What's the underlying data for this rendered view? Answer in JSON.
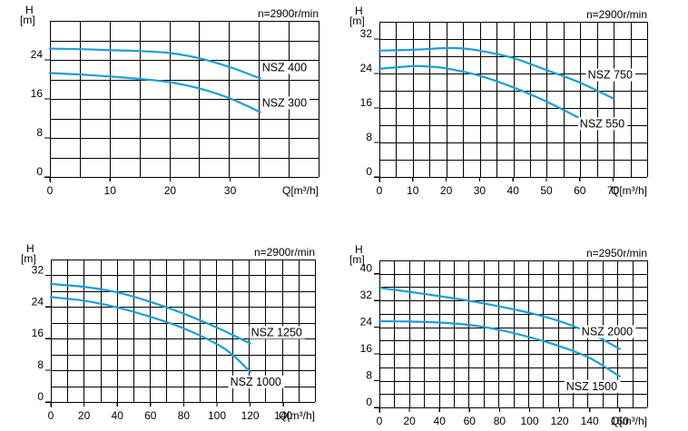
{
  "chart_data": [
    {
      "type": "line",
      "y_unit": "[m]",
      "y_label": "H",
      "x_label": "Q[m³/h]",
      "speed_label": "n=2900r/min",
      "x_ticks": [
        0,
        10,
        20,
        30
      ],
      "y_ticks": [
        0,
        8,
        16,
        24
      ],
      "xlim": [
        0,
        45
      ],
      "ylim": [
        0,
        32
      ],
      "grid": true,
      "series": [
        {
          "name": "NSZ 400",
          "x": [
            0,
            5,
            10,
            15,
            20,
            25,
            30,
            35
          ],
          "y": [
            26.3,
            26.2,
            26.0,
            25.8,
            25.4,
            24.3,
            22.5,
            20.2
          ]
        },
        {
          "name": "NSZ 300",
          "x": [
            0,
            5,
            10,
            15,
            20,
            25,
            30,
            35
          ],
          "y": [
            21.3,
            21.0,
            20.6,
            20.1,
            19.4,
            18.1,
            16.1,
            13.3
          ]
        }
      ]
    },
    {
      "type": "line",
      "y_unit": "[m]",
      "y_label": "H",
      "x_label": "Q[m³/h]",
      "speed_label": "n=2900r/min",
      "x_ticks": [
        0,
        10,
        20,
        30,
        40,
        50,
        60,
        70
      ],
      "y_ticks": [
        0,
        8,
        16,
        24,
        32
      ],
      "xlim": [
        0,
        80
      ],
      "ylim": [
        0,
        36
      ],
      "grid": true,
      "series": [
        {
          "name": "NSZ 750",
          "x": [
            0,
            10,
            20,
            25,
            30,
            40,
            50,
            60,
            70
          ],
          "y": [
            29.3,
            29.5,
            29.9,
            29.8,
            29.3,
            27.6,
            24.8,
            21.9,
            18.2
          ]
        },
        {
          "name": "NSZ 550",
          "x": [
            0,
            10,
            15,
            20,
            30,
            40,
            50,
            60
          ],
          "y": [
            25.1,
            25.7,
            25.6,
            25.2,
            23.5,
            20.8,
            17.5,
            13.6
          ]
        }
      ]
    },
    {
      "type": "line",
      "y_unit": "[m]",
      "y_label": "H",
      "x_label": "Q[m³/h]",
      "speed_label": "n=2900r/min",
      "x_ticks": [
        0,
        20,
        40,
        60,
        80,
        100,
        120,
        140
      ],
      "y_ticks": [
        0,
        8,
        16,
        24,
        32
      ],
      "xlim": [
        0,
        160
      ],
      "ylim": [
        0,
        36
      ],
      "grid": true,
      "series": [
        {
          "name": "NSZ 1250",
          "x": [
            0,
            20,
            40,
            60,
            80,
            100,
            120
          ],
          "y": [
            29.8,
            29.1,
            27.7,
            25.3,
            22.3,
            18.8,
            14.8
          ]
        },
        {
          "name": "NSZ 1000",
          "x": [
            0,
            20,
            40,
            60,
            80,
            100,
            110,
            120
          ],
          "y": [
            26.5,
            25.6,
            23.9,
            21.5,
            18.6,
            14.6,
            11.7,
            7.6
          ]
        }
      ]
    },
    {
      "type": "line",
      "y_unit": "[m]",
      "y_label": "H",
      "x_label": "Q[m³/h]",
      "speed_label": "n=2950r/min",
      "x_ticks": [
        0,
        20,
        40,
        60,
        80,
        100,
        120,
        140,
        160
      ],
      "y_ticks": [
        0,
        8,
        16,
        24,
        32,
        40
      ],
      "xlim": [
        0,
        180
      ],
      "ylim": [
        0,
        44
      ],
      "grid": true,
      "series": [
        {
          "name": "NSZ 2000",
          "x": [
            0,
            20,
            40,
            60,
            80,
            100,
            120,
            140,
            160
          ],
          "y": [
            35.8,
            34.6,
            33.3,
            31.9,
            30.2,
            28.3,
            25.8,
            22.3,
            17.5
          ]
        },
        {
          "name": "NSZ 1500",
          "x": [
            0,
            20,
            40,
            60,
            80,
            100,
            120,
            140,
            160
          ],
          "y": [
            25.8,
            25.7,
            25.4,
            24.7,
            23.2,
            21.0,
            18.3,
            14.8,
            9.3
          ]
        }
      ]
    }
  ]
}
